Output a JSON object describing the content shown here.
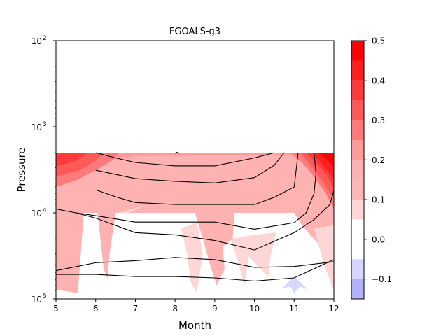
{
  "chart_data": {
    "type": "contour",
    "title": "FGOALS-g3",
    "xlabel": "Month",
    "ylabel": "Pressure",
    "x_ticks": [
      "5",
      "6",
      "7",
      "8",
      "9",
      "10",
      "11",
      "12"
    ],
    "xlim": [
      5,
      12
    ],
    "y_scale": "log",
    "y_inverted": true,
    "ylim": [
      100,
      100000
    ],
    "y_ticks": [
      {
        "base": "10",
        "exp": "2",
        "value": 100
      },
      {
        "base": "10",
        "exp": "3",
        "value": 1000
      },
      {
        "base": "10",
        "exp": "4",
        "value": 10000
      },
      {
        "base": "10",
        "exp": "5",
        "value": 100000
      }
    ],
    "data_top_pressure": 2000,
    "colorbar": {
      "ticks": [
        "0.5",
        "0.4",
        "0.3",
        "0.2",
        "0.1",
        "0.0",
        "−0.1"
      ],
      "range": [
        -0.15,
        0.5
      ],
      "levels": [
        {
          "from": 0.45,
          "to": 0.5,
          "color": "#ff0000"
        },
        {
          "from": 0.4,
          "to": 0.45,
          "color": "#ff1f1f"
        },
        {
          "from": 0.35,
          "to": 0.4,
          "color": "#ff3a3a"
        },
        {
          "from": 0.3,
          "to": 0.35,
          "color": "#ff5959"
        },
        {
          "from": 0.25,
          "to": 0.3,
          "color": "#ff7a7a"
        },
        {
          "from": 0.2,
          "to": 0.25,
          "color": "#ff9b9b"
        },
        {
          "from": 0.15,
          "to": 0.2,
          "color": "#ffb2b2"
        },
        {
          "from": 0.1,
          "to": 0.15,
          "color": "#ffb8b8"
        },
        {
          "from": 0.05,
          "to": 0.1,
          "color": "#ffd6d6"
        },
        {
          "from": -0.05,
          "to": 0.05,
          "color": "#ffffff"
        },
        {
          "from": -0.1,
          "to": -0.05,
          "color": "#d6d6ff"
        },
        {
          "from": -0.15,
          "to": -0.1,
          "color": "#b2b2ff"
        }
      ]
    },
    "filled_regions": [
      {
        "level": 0.1,
        "color": "#ffb2b2",
        "points": [
          [
            5,
            2000
          ],
          [
            12,
            2000
          ],
          [
            12,
            10000
          ],
          [
            5,
            10000
          ]
        ]
      },
      {
        "level": 0.1,
        "color": "#ffb2b2",
        "points": [
          [
            5,
            10000
          ],
          [
            5.7,
            10000
          ],
          [
            5.55,
            86000
          ],
          [
            5,
            78000
          ]
        ]
      },
      {
        "level": 0.1,
        "color": "#ffb2b2",
        "points": [
          [
            6.05,
            10000
          ],
          [
            6.5,
            10000
          ],
          [
            6.35,
            30000
          ],
          [
            6.3,
            58000
          ],
          [
            6.2,
            45000
          ]
        ]
      },
      {
        "level": 0.1,
        "color": "#ffb2b2",
        "points": [
          [
            8.5,
            10000
          ],
          [
            9.5,
            10000
          ],
          [
            9.45,
            20000
          ],
          [
            9.2,
            25000
          ],
          [
            9.25,
            45000
          ],
          [
            9.05,
            70000
          ],
          [
            8.85,
            36000
          ],
          [
            8.7,
            20000
          ]
        ]
      },
      {
        "level": 0.1,
        "color": "#ffb2b2",
        "points": [
          [
            11.0,
            10000
          ],
          [
            12,
            10000
          ],
          [
            12,
            50000
          ],
          [
            11.85,
            30000
          ],
          [
            11.4,
            18000
          ],
          [
            11.15,
            13000
          ]
        ]
      },
      {
        "level": 0.05,
        "color": "#ffd6d6",
        "points": [
          [
            8.15,
            15000
          ],
          [
            8.55,
            13000
          ],
          [
            8.7,
            30000
          ],
          [
            8.55,
            85000
          ],
          [
            8.4,
            65000
          ],
          [
            8.3,
            30000
          ]
        ]
      },
      {
        "level": 0.05,
        "color": "#ffd6d6",
        "points": [
          [
            9.4,
            20000
          ],
          [
            10.0,
            18000
          ],
          [
            10.55,
            17000
          ],
          [
            10.4,
            33000
          ],
          [
            10.35,
            55000
          ],
          [
            10.15,
            45000
          ],
          [
            9.85,
            32000
          ],
          [
            9.75,
            72000
          ],
          [
            9.6,
            40000
          ]
        ]
      },
      {
        "level": 0.05,
        "color": "#ffd6d6",
        "points": [
          [
            11.5,
            15000
          ],
          [
            12,
            14000
          ],
          [
            12,
            80000
          ],
          [
            11.75,
            40000
          ]
        ]
      },
      {
        "level": 0.05,
        "color": "#ffd6d6",
        "points": [
          [
            6.6,
            10000
          ],
          [
            7.3,
            8000
          ],
          [
            7.0,
            9200
          ],
          [
            6.85,
            10000
          ]
        ]
      },
      {
        "level": -0.1,
        "color": "#d6d6ff",
        "points": [
          [
            10.7,
            75000
          ],
          [
            11.0,
            55000
          ],
          [
            11.35,
            78000
          ],
          [
            11.15,
            72000
          ],
          [
            11.0,
            86000
          ],
          [
            10.9,
            72000
          ]
        ]
      },
      {
        "level": 0.2,
        "color": "#ff9b9b",
        "points": [
          [
            5,
            2000
          ],
          [
            12,
            2000
          ],
          [
            12,
            3200
          ],
          [
            11.6,
            2600
          ],
          [
            11.2,
            2200
          ],
          [
            10.5,
            2100
          ],
          [
            7.0,
            2200
          ],
          [
            6.3,
            2500
          ],
          [
            5,
            2800
          ]
        ]
      },
      {
        "level": 0.25,
        "color": "#ff7a7a",
        "points": [
          [
            5,
            2000
          ],
          [
            6.6,
            2000
          ],
          [
            6.4,
            2500
          ],
          [
            6.0,
            3200
          ],
          [
            5.5,
            4200
          ],
          [
            5,
            5000
          ]
        ]
      },
      {
        "level": 0.25,
        "color": "#ff7a7a",
        "points": [
          [
            10.9,
            2000
          ],
          [
            12,
            2000
          ],
          [
            12,
            9000
          ],
          [
            11.8,
            6000
          ],
          [
            11.5,
            3800
          ],
          [
            11.2,
            2600
          ]
        ]
      },
      {
        "level": 0.3,
        "color": "#ff5959",
        "points": [
          [
            5,
            2000
          ],
          [
            6.2,
            2000
          ],
          [
            6.0,
            2500
          ],
          [
            5.6,
            3200
          ],
          [
            5,
            3800
          ]
        ]
      },
      {
        "level": 0.3,
        "color": "#ff5959",
        "points": [
          [
            11.15,
            2000
          ],
          [
            12,
            2000
          ],
          [
            12,
            7000
          ],
          [
            11.75,
            4600
          ],
          [
            11.45,
            2900
          ]
        ]
      },
      {
        "level": 0.35,
        "color": "#ff3a3a",
        "points": [
          [
            5,
            2000
          ],
          [
            5.8,
            2000
          ],
          [
            5.5,
            2500
          ],
          [
            5,
            2900
          ]
        ]
      },
      {
        "level": 0.35,
        "color": "#ff3a3a",
        "points": [
          [
            11.3,
            2000
          ],
          [
            12,
            2000
          ],
          [
            12,
            5300
          ],
          [
            11.85,
            3800
          ],
          [
            11.55,
            2600
          ]
        ]
      },
      {
        "level": 0.4,
        "color": "#ff1f1f",
        "points": [
          [
            11.45,
            2000
          ],
          [
            12,
            2000
          ],
          [
            12,
            4000
          ],
          [
            11.75,
            2900
          ]
        ]
      },
      {
        "level": 0.45,
        "color": "#ff0000",
        "points": [
          [
            11.6,
            2000
          ],
          [
            12,
            2000
          ],
          [
            12,
            3000
          ],
          [
            11.85,
            2450
          ]
        ]
      }
    ],
    "contour_lines": [
      {
        "points": [
          [
            6,
            2000
          ],
          [
            6.5,
            2300
          ],
          [
            7,
            2600
          ],
          [
            8,
            2850
          ],
          [
            9,
            2850
          ],
          [
            10,
            2300
          ],
          [
            10.5,
            2000
          ]
        ]
      },
      {
        "points": [
          [
            6,
            3200
          ],
          [
            7,
            4000
          ],
          [
            8,
            4300
          ],
          [
            9,
            4500
          ],
          [
            10,
            3900
          ],
          [
            10.5,
            2800
          ],
          [
            10.75,
            2000
          ]
        ]
      },
      {
        "points": [
          [
            6,
            5400
          ],
          [
            6.5,
            6500
          ],
          [
            7,
            7600
          ],
          [
            8,
            8000
          ],
          [
            9,
            8000
          ],
          [
            10,
            8000
          ],
          [
            10.5,
            6600
          ],
          [
            11,
            5000
          ],
          [
            11.1,
            2000
          ]
        ]
      },
      {
        "points": [
          [
            5,
            9000
          ],
          [
            5.5,
            10000
          ],
          [
            6,
            10800
          ],
          [
            7,
            12800
          ],
          [
            8,
            12800
          ],
          [
            9,
            12800
          ],
          [
            10,
            15500
          ],
          [
            11,
            13000
          ],
          [
            11.3,
            10000
          ],
          [
            11.5,
            6000
          ],
          [
            11.55,
            3500
          ],
          [
            11.5,
            2000
          ]
        ]
      },
      {
        "points": [
          [
            5.5,
            10000
          ],
          [
            6,
            11500
          ],
          [
            7,
            17000
          ],
          [
            8,
            18000
          ],
          [
            9,
            21000
          ],
          [
            10,
            27000
          ],
          [
            11,
            17000
          ],
          [
            11.5,
            12000
          ],
          [
            11.9,
            8000
          ],
          [
            12,
            5500
          ]
        ]
      },
      {
        "points": [
          [
            5,
            47000
          ],
          [
            6,
            38000
          ],
          [
            7,
            36000
          ],
          [
            8,
            33000
          ],
          [
            9,
            35000
          ],
          [
            10,
            43000
          ],
          [
            11,
            42000
          ],
          [
            12,
            37000
          ]
        ]
      },
      {
        "points": [
          [
            5,
            52000
          ],
          [
            6,
            52000
          ],
          [
            7,
            55000
          ],
          [
            8,
            55000
          ],
          [
            9,
            57000
          ],
          [
            10,
            62000
          ],
          [
            11,
            57000
          ],
          [
            12,
            35000
          ]
        ]
      },
      {
        "points": [
          [
            8,
            2040
          ],
          [
            8.05,
            1980
          ],
          [
            8.1,
            2040
          ]
        ]
      }
    ]
  }
}
